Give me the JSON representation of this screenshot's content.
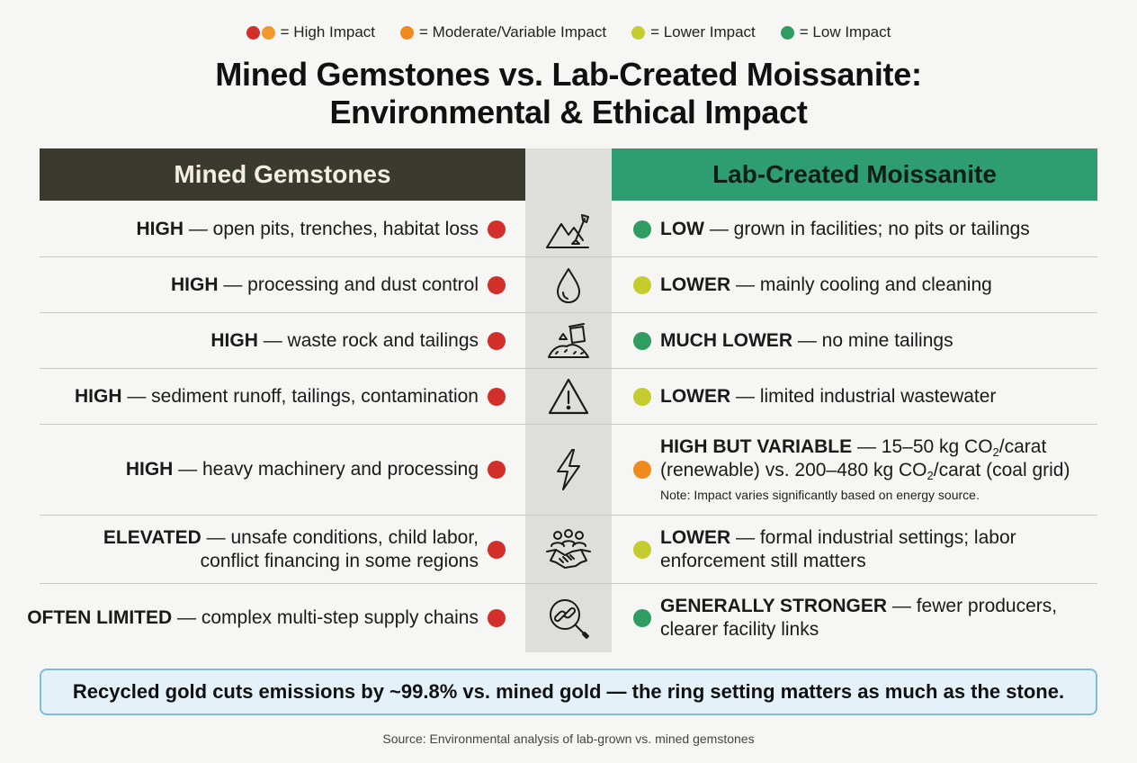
{
  "legend": [
    {
      "label": "= High Impact",
      "colors": [
        "#d22f2a",
        "#f2972b"
      ]
    },
    {
      "label": "= Moderate/Variable Impact",
      "colors": [
        "#f08a1c"
      ]
    },
    {
      "label": "= Lower Impact",
      "colors": [
        "#c4cc2e"
      ]
    },
    {
      "label": "= Low Impact",
      "colors": [
        "#2f9d62"
      ]
    }
  ],
  "title": {
    "line1": "Mined Gemstones vs. Lab-Created Moissanite:",
    "line2": "Environmental & Ethical Impact"
  },
  "headers": {
    "left": "Mined Gemstones",
    "right": "Lab-Created Moissanite"
  },
  "colors": {
    "red": "#d22f2a",
    "orange": "#f08a1c",
    "yellow_green": "#c4cc2e",
    "green": "#2f9d62"
  },
  "rows": [
    {
      "icon": "mining-mountain-shovel-icon",
      "left_bold": "HIGH",
      "left_text": " — open pits, trenches, habitat loss",
      "left_color": "#d22f2a",
      "right_bold": "LOW",
      "right_text": " — grown in facilities; no pits or tailings",
      "right_color": "#2f9d62"
    },
    {
      "icon": "water-drop-icon",
      "left_bold": "HIGH",
      "left_text": " — processing and dust control",
      "left_color": "#d22f2a",
      "right_bold": "LOWER",
      "right_text": " — mainly cooling and cleaning",
      "right_color": "#c4cc2e"
    },
    {
      "icon": "waste-pile-icon",
      "left_bold": "HIGH",
      "left_text": " — waste rock and tailings",
      "left_color": "#d22f2a",
      "right_bold": "MUCH LOWER",
      "right_text": " — no mine tailings",
      "right_color": "#2f9d62"
    },
    {
      "icon": "warning-triangle-icon",
      "left_bold": "HIGH",
      "left_text": " — sediment runoff, tailings, contamination",
      "left_color": "#d22f2a",
      "right_bold": "LOWER",
      "right_text": " — limited industrial wastewater",
      "right_color": "#c4cc2e"
    },
    {
      "icon": "lightning-bolt-icon",
      "left_bold": "HIGH",
      "left_text": " — heavy machinery and processing",
      "left_color": "#d22f2a",
      "right_bold": "HIGH BUT VARIABLE",
      "right_text_a": " — 15–50 kg CO",
      "right_text_b": "/carat",
      "right_text_c": "(renewable) vs. 200–480 kg CO",
      "right_text_d": "/carat (coal grid)",
      "subscript": "2",
      "right_note": "Note: Impact varies significantly based on energy source.",
      "right_color": "#f08a1c"
    },
    {
      "icon": "people-handshake-icon",
      "left_bold": "ELEVATED",
      "left_text": " — unsafe conditions, child labor,",
      "left_text2": "conflict financing in some regions",
      "left_color": "#d22f2a",
      "right_bold": "LOWER",
      "right_text": " — formal industrial settings; labor",
      "right_text2": "enforcement still matters",
      "right_color": "#c4cc2e"
    },
    {
      "icon": "chain-link-magnifier-icon",
      "left_bold": "OFTEN LIMITED",
      "left_text": " — complex multi-step supply chains",
      "left_color": "#d22f2a",
      "right_bold": "GENERALLY STRONGER",
      "right_text": " — fewer producers,",
      "right_text2": "clearer facility links",
      "right_color": "#2f9d62"
    }
  ],
  "callout": "Recycled gold cuts emissions by ~99.8% vs. mined gold — the ring setting matters as much as the stone.",
  "source": "Source: Environmental analysis of lab-grown vs. mined gemstones"
}
